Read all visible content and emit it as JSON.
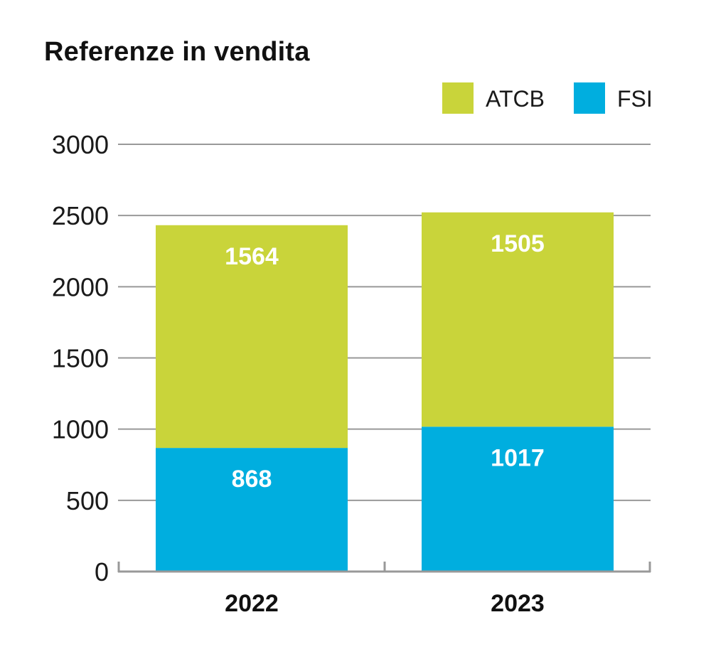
{
  "chart_data": {
    "type": "bar",
    "stacked": true,
    "title": "Referenze in vendita",
    "categories": [
      "2022",
      "2023"
    ],
    "series": [
      {
        "name": "FSI",
        "values": [
          868,
          1017
        ],
        "color": "#00aedf"
      },
      {
        "name": "ATCB",
        "values": [
          1564,
          1505
        ],
        "color": "#c9d43a"
      }
    ],
    "legend_order": [
      "ATCB",
      "FSI"
    ],
    "legend_position": "top-right",
    "ylim": [
      0,
      3000
    ],
    "yticks": [
      "0",
      "500",
      "1000",
      "1500",
      "2000",
      "2500",
      "3000"
    ],
    "ytick_values": [
      0,
      500,
      1000,
      1500,
      2000,
      2500,
      3000
    ],
    "grid": true,
    "gridline_color": "#999999",
    "xlabel": "",
    "ylabel": ""
  }
}
